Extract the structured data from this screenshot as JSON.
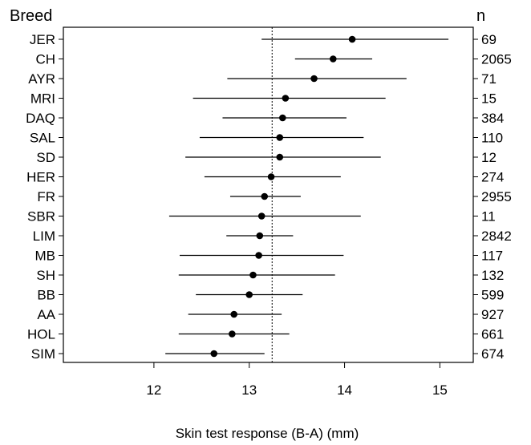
{
  "chart_data": {
    "type": "forest",
    "ylabel": "Breed",
    "n_label": "n",
    "xlabel": "Skin test response (B-A) (mm)",
    "xlim": [
      11.05,
      15.35
    ],
    "xticks": [
      "12",
      "13",
      "14",
      "15"
    ],
    "reference_line": 13.24,
    "categories": [
      "JER",
      "CH",
      "AYR",
      "MRI",
      "DAQ",
      "SAL",
      "SD",
      "HER",
      "FR",
      "SBR",
      "LIM",
      "MB",
      "SH",
      "BB",
      "AA",
      "HOL",
      "SIM"
    ],
    "n": [
      "69",
      "2065",
      "71",
      "15",
      "384",
      "110",
      "12",
      "274",
      "2955",
      "11",
      "2842",
      "117",
      "132",
      "599",
      "927",
      "661",
      "674"
    ],
    "estimate": [
      14.08,
      13.88,
      13.68,
      13.38,
      13.35,
      13.32,
      13.32,
      13.23,
      13.16,
      13.13,
      13.11,
      13.1,
      13.04,
      13.0,
      12.84,
      12.82,
      12.63
    ],
    "lower": [
      13.13,
      13.48,
      12.77,
      12.41,
      12.72,
      12.48,
      12.33,
      12.53,
      12.8,
      12.16,
      12.76,
      12.27,
      12.26,
      12.44,
      12.36,
      12.26,
      12.12
    ],
    "upper": [
      15.09,
      14.29,
      14.65,
      14.43,
      14.02,
      14.2,
      14.38,
      13.96,
      13.54,
      14.17,
      13.46,
      13.99,
      13.9,
      13.56,
      13.34,
      13.42,
      13.16
    ]
  }
}
